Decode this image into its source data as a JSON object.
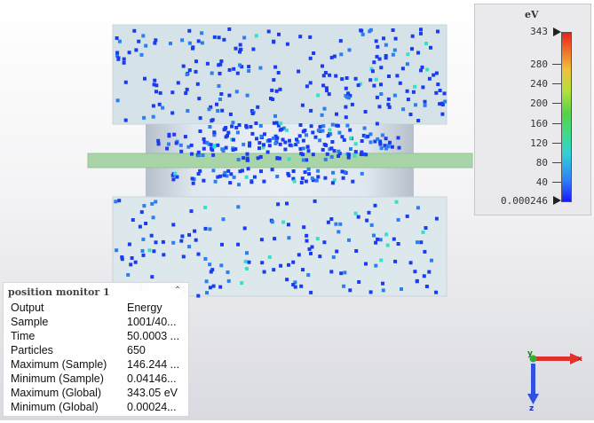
{
  "legend": {
    "unit": "eV",
    "max_label": "343",
    "min_label": "0.000246",
    "ticks": [
      "280",
      "240",
      "200",
      "160",
      "120",
      "80",
      "40"
    ]
  },
  "info_panel": {
    "title": "position  monitor 1",
    "rows": [
      {
        "key": "Output",
        "value": "Energy"
      },
      {
        "key": "Sample",
        "value": "1001/40..."
      },
      {
        "key": "Time",
        "value": "50.0003 ..."
      },
      {
        "key": "Particles",
        "value": "650"
      },
      {
        "key": "Maximum (Sample)",
        "value": "146.244 ..."
      },
      {
        "key": "Minimum (Sample)",
        "value": "0.04146..."
      },
      {
        "key": "Maximum (Global)",
        "value": "343.05 eV"
      },
      {
        "key": "Minimum (Global)",
        "value": "0.00024..."
      }
    ]
  },
  "axes": {
    "x_label": "x",
    "y_label": "y",
    "z_label": "z"
  },
  "colors": {
    "particle_main": "#1a3cf0",
    "particle_alt": "#2a7ef0",
    "particle_hot": "#35e0c8",
    "plate": "#a7d6a7",
    "x_axis": "#e03030",
    "y_axis": "#30b030",
    "z_axis": "#3050e0"
  }
}
